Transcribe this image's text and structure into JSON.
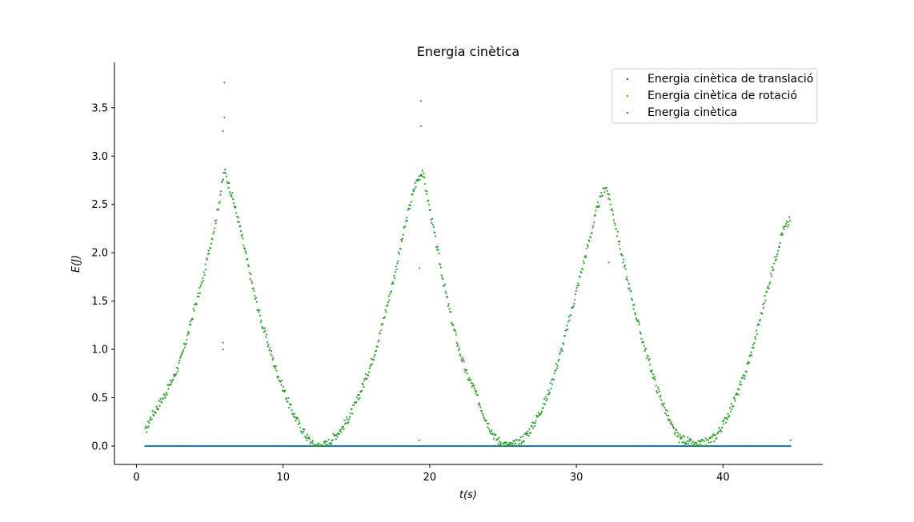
{
  "chart_data": {
    "type": "scatter",
    "title": "Energia cinètica",
    "xlabel": "t(s)",
    "ylabel": "E(J)",
    "xlim": [
      -1.5,
      46.8
    ],
    "ylim": [
      -0.19,
      3.97
    ],
    "xticks": [
      0,
      10,
      20,
      30,
      40
    ],
    "yticks": [
      0.0,
      0.5,
      1.0,
      1.5,
      2.0,
      2.5,
      3.0,
      3.5
    ],
    "xtick_labels": [
      "0",
      "10",
      "20",
      "30",
      "40"
    ],
    "ytick_labels": [
      "0.0",
      "0.5",
      "1.0",
      "1.5",
      "2.0",
      "2.5",
      "3.0",
      "3.5"
    ],
    "grid": false,
    "legend_position": "top-right",
    "series": [
      {
        "name": "Energia cinètica de translació",
        "color": "#1f77b4",
        "x_range": [
          0.6,
          44.6
        ],
        "x_step": 0.05,
        "y_value": 0.0
      },
      {
        "name": "Energia cinètica de rotació",
        "color": "#ff7f0e",
        "note_visible": "hidden beneath total"
      },
      {
        "name": "Energia cinètica",
        "color": "#2ca02c",
        "x": [
          0.6,
          1.0,
          1.5,
          2.0,
          2.5,
          3.0,
          3.5,
          4.0,
          4.5,
          5.0,
          5.5,
          6.0,
          6.5,
          7.0,
          7.5,
          8.0,
          8.5,
          9.0,
          9.5,
          10.0,
          10.5,
          11.0,
          11.5,
          12.0,
          12.5,
          13.0,
          13.5,
          14.0,
          14.5,
          15.0,
          15.5,
          16.0,
          16.5,
          17.0,
          17.5,
          18.0,
          18.5,
          19.0,
          19.5,
          20.0,
          20.5,
          21.0,
          21.5,
          22.0,
          22.5,
          23.0,
          23.5,
          24.0,
          24.5,
          25.0,
          25.5,
          26.0,
          26.5,
          27.0,
          27.5,
          28.0,
          28.5,
          29.0,
          29.5,
          30.0,
          30.5,
          31.0,
          31.5,
          32.0,
          32.5,
          33.0,
          33.5,
          34.0,
          34.5,
          35.0,
          35.5,
          36.0,
          36.5,
          37.0,
          37.5,
          38.0,
          38.5,
          39.0,
          39.5,
          40.0,
          40.5,
          41.0,
          41.5,
          42.0,
          42.5,
          43.0,
          43.5,
          44.0,
          44.6
        ],
        "y": [
          0.15,
          0.3,
          0.42,
          0.55,
          0.7,
          0.88,
          1.15,
          1.45,
          1.7,
          2.05,
          2.4,
          2.85,
          2.6,
          2.3,
          1.95,
          1.6,
          1.3,
          1.05,
          0.8,
          0.6,
          0.4,
          0.25,
          0.12,
          0.02,
          0.0,
          0.02,
          0.1,
          0.18,
          0.3,
          0.45,
          0.65,
          0.85,
          1.1,
          1.4,
          1.7,
          2.05,
          2.4,
          2.7,
          2.85,
          2.45,
          2.05,
          1.65,
          1.3,
          1.0,
          0.75,
          0.6,
          0.4,
          0.22,
          0.08,
          0.02,
          0.0,
          0.03,
          0.1,
          0.2,
          0.35,
          0.5,
          0.75,
          1.0,
          1.3,
          1.6,
          1.9,
          2.2,
          2.5,
          2.7,
          2.4,
          2.05,
          1.7,
          1.4,
          1.1,
          0.85,
          0.6,
          0.4,
          0.2,
          0.08,
          0.06,
          0.0,
          0.02,
          0.05,
          0.1,
          0.22,
          0.38,
          0.55,
          0.75,
          1.0,
          1.3,
          1.6,
          1.9,
          2.2,
          2.35
        ],
        "outliers": [
          [
            6.0,
            3.76
          ],
          [
            6.0,
            3.4
          ],
          [
            5.9,
            3.26
          ],
          [
            5.9,
            1.07
          ],
          [
            5.9,
            1.0
          ],
          [
            19.4,
            3.57
          ],
          [
            19.4,
            3.31
          ],
          [
            19.3,
            1.84
          ],
          [
            19.3,
            0.06
          ],
          [
            32.2,
            1.9
          ],
          [
            44.6,
            0.06
          ]
        ]
      }
    ]
  }
}
